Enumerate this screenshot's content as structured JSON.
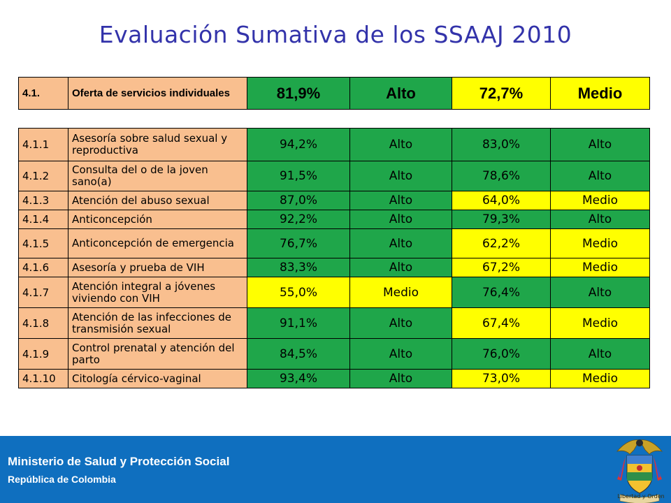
{
  "title": "Evaluación Sumativa de los SSAAJ 2010",
  "summary": {
    "code": "4.1.",
    "label": "Oferta de servicios individuales",
    "pct_a": "81,9%",
    "level_a": "Alto",
    "pct_b": "72,7%",
    "level_b": "Medio"
  },
  "rows": [
    {
      "code": "4.1.1",
      "label": "Asesoría sobre salud sexual y reproductiva",
      "pct_a": "94,2%",
      "level_a": "Alto",
      "pct_b": "83,0%",
      "level_b": "Alto"
    },
    {
      "code": "4.1.2",
      "label": "Consulta del o de la joven sano(a)",
      "pct_a": "91,5%",
      "level_a": "Alto",
      "pct_b": "78,6%",
      "level_b": "Alto"
    },
    {
      "code": "4.1.3",
      "label": "Atención del abuso sexual",
      "pct_a": "87,0%",
      "level_a": "Alto",
      "pct_b": "64,0%",
      "level_b": "Medio"
    },
    {
      "code": "4.1.4",
      "label": "Anticoncepción",
      "pct_a": "92,2%",
      "level_a": "Alto",
      "pct_b": "79,3%",
      "level_b": "Alto"
    },
    {
      "code": "4.1.5",
      "label": "Anticoncepción de emergencia",
      "pct_a": "76,7%",
      "level_a": "Alto",
      "pct_b": "62,2%",
      "level_b": "Medio"
    },
    {
      "code": "4.1.6",
      "label": "Asesoría y prueba de VIH",
      "pct_a": "83,3%",
      "level_a": "Alto",
      "pct_b": "67,2%",
      "level_b": "Medio"
    },
    {
      "code": "4.1.7",
      "label": "Atención integral a jóvenes viviendo con VIH",
      "pct_a": "55,0%",
      "level_a": "Medio",
      "pct_b": "76,4%",
      "level_b": "Alto"
    },
    {
      "code": "4.1.8",
      "label": "Atención de las infecciones de transmisión sexual",
      "pct_a": "91,1%",
      "level_a": "Alto",
      "pct_b": "67,4%",
      "level_b": "Medio"
    },
    {
      "code": "4.1.9",
      "label": "Control prenatal y atención del parto",
      "pct_a": "84,5%",
      "level_a": "Alto",
      "pct_b": "76,0%",
      "level_b": "Alto"
    },
    {
      "code": "4.1.10",
      "label": "Citología cérvico-vaginal",
      "pct_a": "93,4%",
      "level_a": "Alto",
      "pct_b": "73,0%",
      "level_b": "Medio"
    }
  ],
  "colors": {
    "alto": "#1fa64a",
    "medio": "#ffff00",
    "label_bg": "#f9bf8f",
    "footer": "#0f6fbf",
    "title": "#3333aa"
  },
  "footer": {
    "ministry": "Ministerio de Salud y Protección Social",
    "republic": "República de Colombia",
    "crest_icon": "colombia-coat-of-arms-icon",
    "crest_motto": "Libertad y Orden"
  }
}
